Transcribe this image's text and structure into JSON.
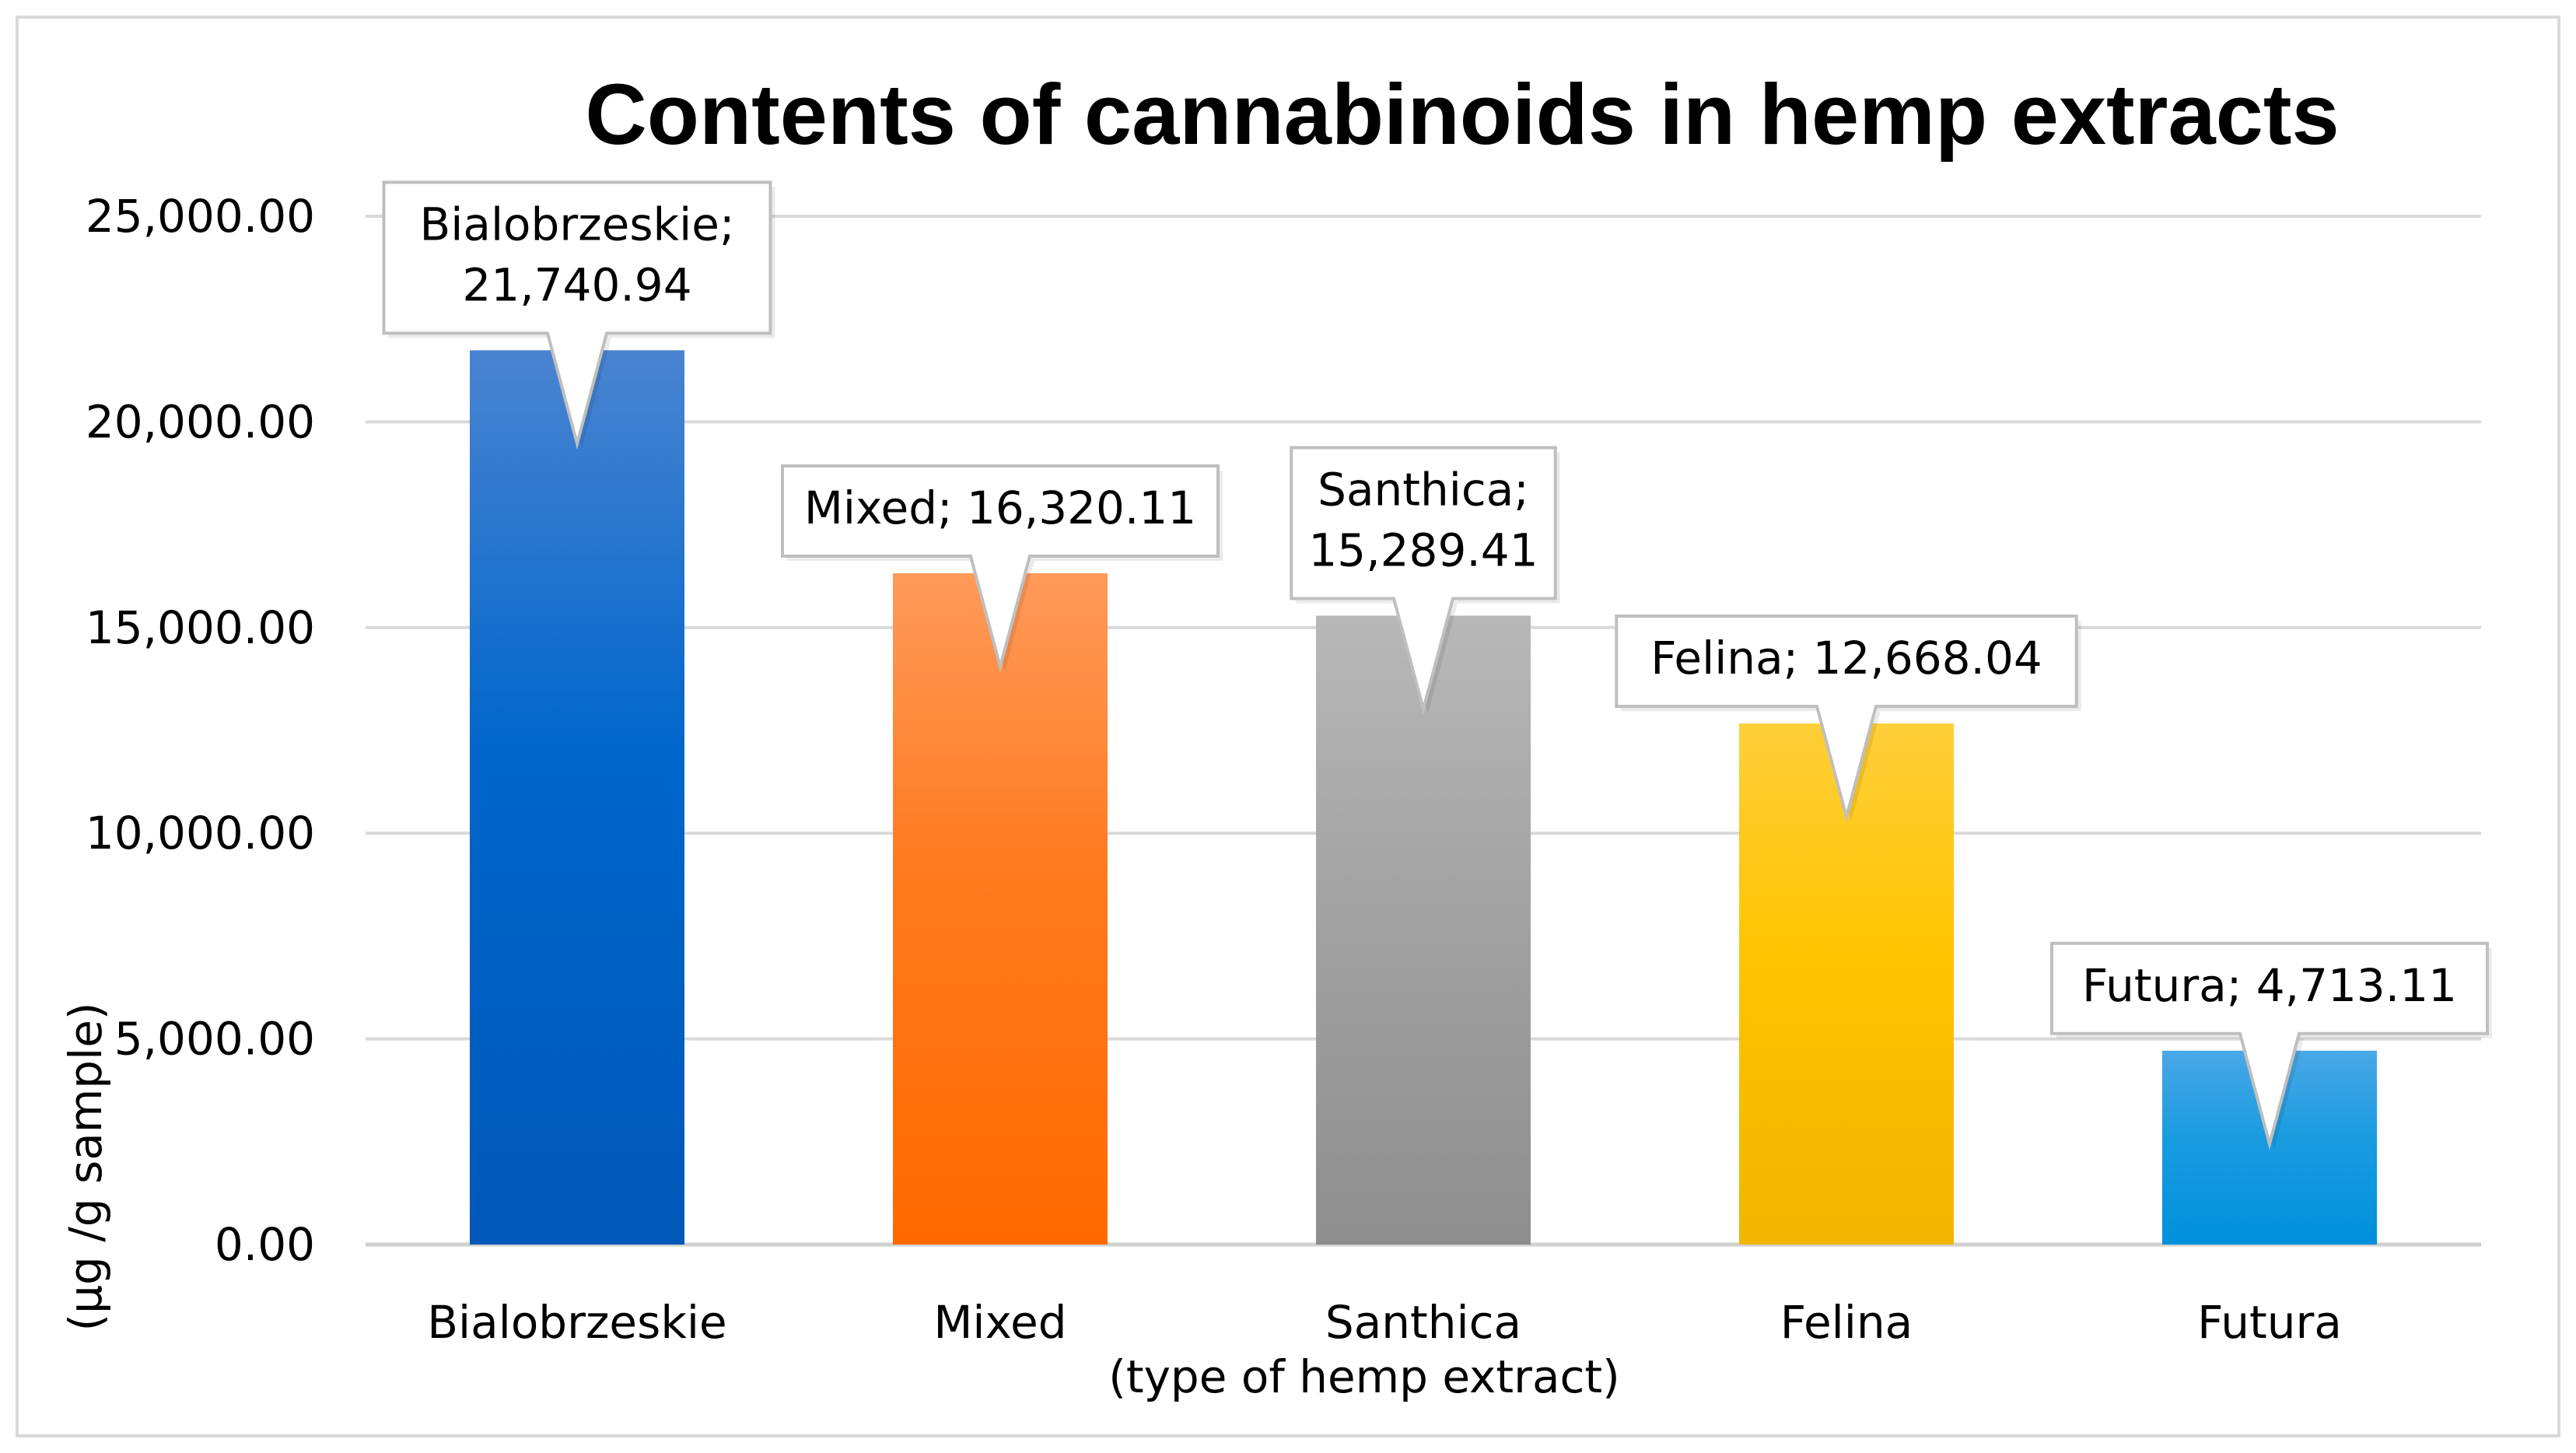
{
  "chart_data": {
    "type": "bar",
    "title": "Contents of cannabinoids in hemp extracts",
    "xlabel": "(type of hemp extract)",
    "ylabel": "(μg /g sample)",
    "ylim": [
      0,
      25000
    ],
    "yticks": [
      "0.00",
      "5,000.00",
      "10,000.00",
      "15,000.00",
      "20,000.00",
      "25,000.00"
    ],
    "ytick_values": [
      0,
      5000,
      10000,
      15000,
      20000,
      25000
    ],
    "categories": [
      "Bialobrzeskie",
      "Mixed",
      "Santhica",
      "Felina",
      "Futura"
    ],
    "values": [
      21740.94,
      16320.11,
      15289.41,
      12668.04,
      4713.11
    ],
    "data_labels": [
      [
        "Bialobrzeskie;",
        "21,740.94"
      ],
      [
        "Mixed; 16,320.11"
      ],
      [
        "Santhica;",
        "15,289.41"
      ],
      [
        "Felina; 12,668.04"
      ],
      [
        "Futura; 4,713.11"
      ]
    ],
    "colors": [
      [
        "#4a84d0",
        "#0066cc",
        "#0058b8"
      ],
      [
        "#ff9a5a",
        "#ff7a1e",
        "#ff6a00"
      ],
      [
        "#b8b8b8",
        "#a3a3a3",
        "#8e8e8e"
      ],
      [
        "#ffcf3a",
        "#ffc400",
        "#f2b400"
      ],
      [
        "#4aa8e6",
        "#1a9be0",
        "#0090dc"
      ]
    ],
    "grid": true,
    "legend": "none"
  }
}
